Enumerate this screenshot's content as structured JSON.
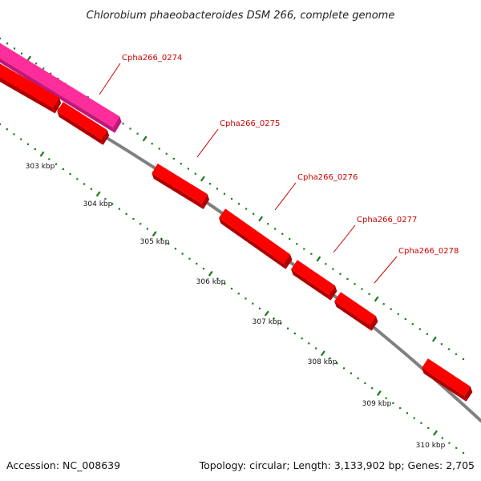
{
  "title": "Chlorobium phaeobacteroides DSM 266, complete genome",
  "footer": {
    "accession": "Accession: NC_008639",
    "summary": "Topology: circular; Length: 3,133,902 bp; Genes: 2,705"
  },
  "colors": {
    "backbone": "#808080",
    "gene": "#ff0000",
    "gene_dark": "#b00000",
    "gene_highlight": "#ff2d9b",
    "gene_highlight_dark": "#c0187a",
    "tick": "#1a7a1a",
    "label": "#cc0000"
  },
  "scale": {
    "unit": "kbp",
    "ticks": [
      "303 kbp",
      "304 kbp",
      "305 kbp",
      "306 kbp",
      "307 kbp",
      "308 kbp",
      "309 kbp",
      "310 kbp"
    ]
  },
  "genes": [
    {
      "label": "",
      "strand": "+",
      "highlight": true
    },
    {
      "label": "",
      "strand": "+",
      "highlight": false
    },
    {
      "label": "Cpha266_0274",
      "strand": "+",
      "highlight": false
    },
    {
      "label": "Cpha266_0275",
      "strand": "+",
      "highlight": false
    },
    {
      "label": "Cpha266_0276",
      "strand": "+",
      "highlight": false
    },
    {
      "label": "Cpha266_0277",
      "strand": "+",
      "highlight": false
    },
    {
      "label": "Cpha266_0278",
      "strand": "+",
      "highlight": false
    },
    {
      "label": "",
      "strand": "+",
      "highlight": false
    }
  ]
}
